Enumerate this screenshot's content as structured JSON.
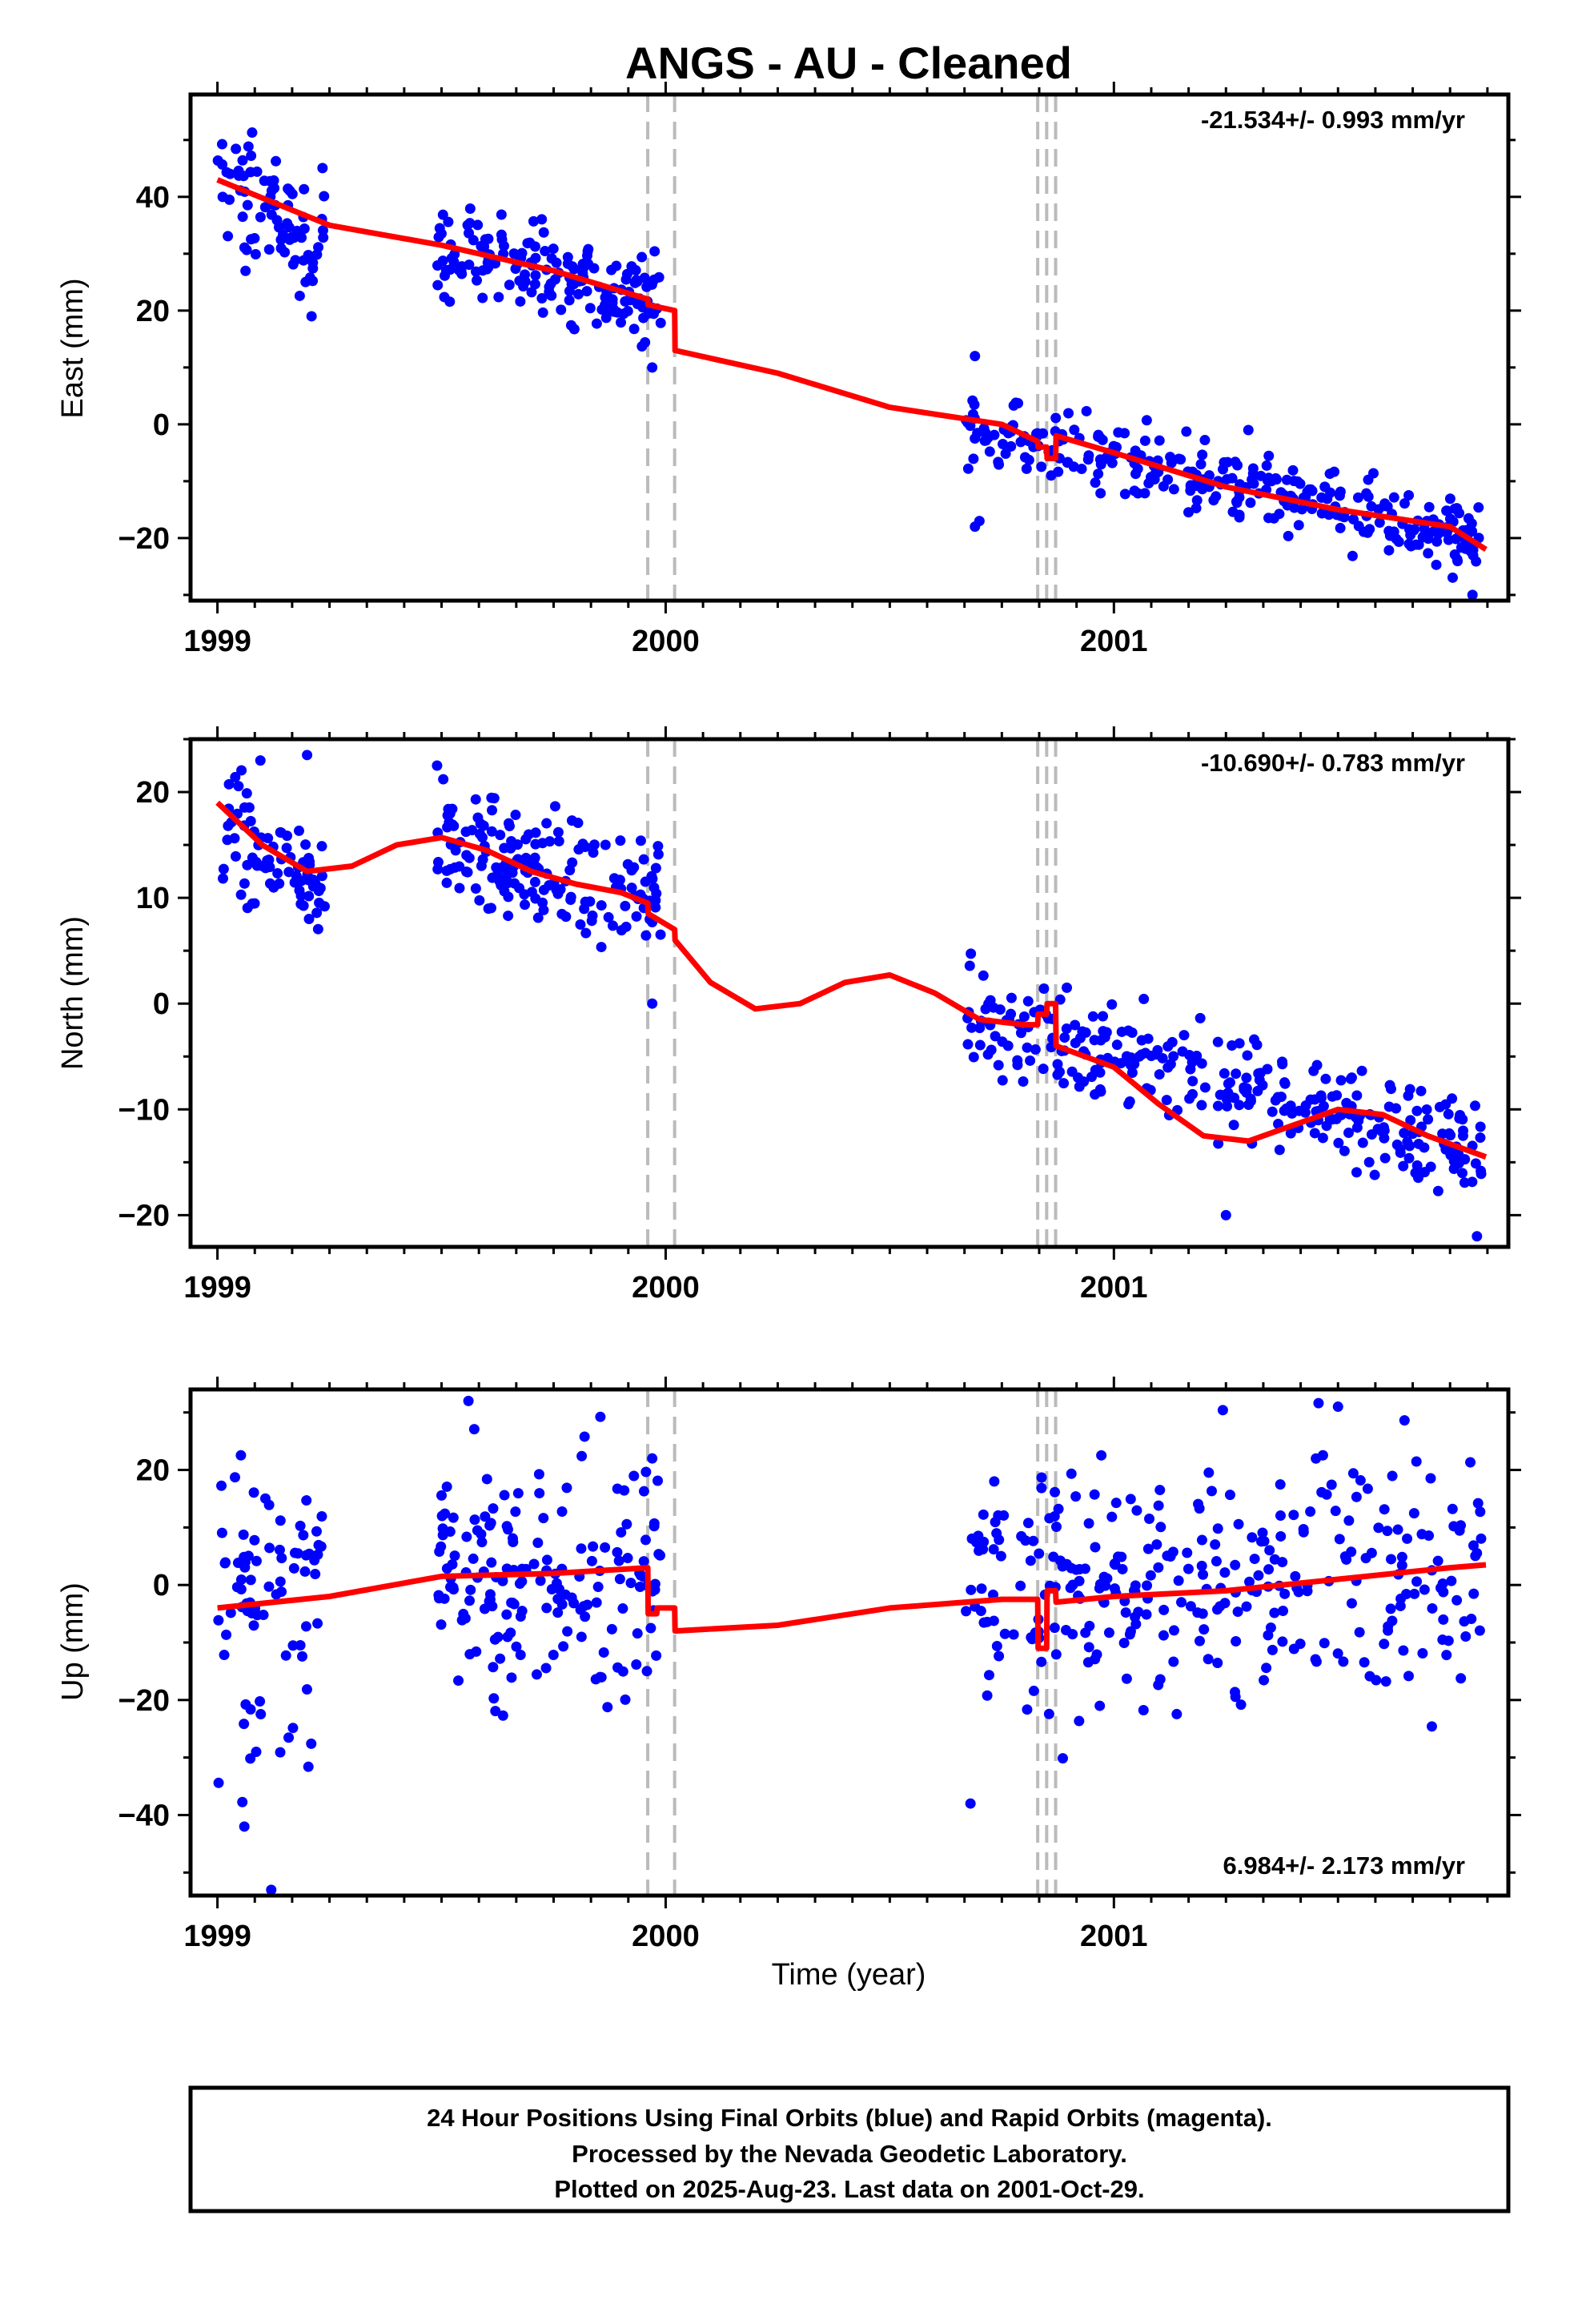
{
  "title": "ANGS  - AU - Cleaned",
  "xlabel": "Time (year)",
  "footer": [
    "24 Hour Positions Using Final Orbits (blue) and Rapid Orbits (magenta).",
    "Processed by the Nevada Geodetic Laboratory.",
    "Plotted on 2025-Aug-23. Last data on 2001-Oct-29."
  ],
  "colors": {
    "points": "#0000ff",
    "model": "#ff0000",
    "breaks": "#bbbbbb",
    "axes": "#000000"
  },
  "chart_data": [
    {
      "type": "scatter",
      "ylabel": "East (mm)",
      "rate": "-21.534+/- 0.993 mm/yr",
      "xlim": [
        1998.94,
        2001.88
      ],
      "ylim": [
        -31,
        58
      ],
      "yticks": [
        -20,
        0,
        20,
        40
      ],
      "xticks": [
        "1999",
        "2000",
        "2001"
      ],
      "breaks": [
        1999.96,
        2000.02,
        2000.83,
        2000.85,
        2000.87
      ],
      "model": {
        "x": [
          1999.0,
          1999.25,
          1999.5,
          1999.75,
          1999.96,
          1999.961,
          2000.02,
          2000.021,
          2000.25,
          2000.5,
          2000.75,
          2000.83,
          2000.831,
          2000.85,
          2000.851,
          2000.87,
          2000.871,
          2001.0,
          2001.25,
          2001.5,
          2001.75,
          2001.83
        ],
        "y": [
          43,
          35,
          31.5,
          27,
          22,
          21,
          20,
          13,
          9,
          3,
          0,
          -3,
          -4,
          -4,
          -6,
          -6,
          -2,
          -5,
          -11,
          -15,
          -18,
          -22
        ]
      },
      "clusters": [
        {
          "start": 1999.0,
          "end": 1999.24,
          "n": 80,
          "base": 42,
          "slope": -40,
          "noise": 5.5
        },
        {
          "start": 1999.49,
          "end": 1999.99,
          "n": 170,
          "base": 31,
          "slope": -18,
          "noise": 4
        },
        {
          "start": 2000.67,
          "end": 2001.82,
          "n": 310,
          "base": -1,
          "slope": -16.5,
          "noise": 3.2
        }
      ],
      "outliers": [
        {
          "x": 1999.21,
          "y": 19
        },
        {
          "x": 1999.97,
          "y": 10
        },
        {
          "x": 2000.69,
          "y": 12
        },
        {
          "x": 2000.69,
          "y": -18
        },
        {
          "x": 2000.7,
          "y": -17
        },
        {
          "x": 2001.8,
          "y": -30
        },
        {
          "x": 2001.3,
          "y": -1
        }
      ]
    },
    {
      "type": "scatter",
      "ylabel": "North (mm)",
      "rate": "-10.690+/- 0.783 mm/yr",
      "xlim": [
        1998.94,
        2001.88
      ],
      "ylim": [
        -23,
        25
      ],
      "yticks": [
        -20,
        -10,
        0,
        10,
        20
      ],
      "xticks": [
        "1999",
        "2000",
        "2001"
      ],
      "breaks": [
        1999.96,
        2000.02,
        2000.83,
        2000.85,
        2000.87
      ],
      "model": {
        "x": [
          1999.0,
          1999.1,
          1999.2,
          1999.3,
          1999.4,
          1999.5,
          1999.6,
          1999.7,
          1999.8,
          1999.9,
          1999.96,
          1999.961,
          2000.02,
          2000.021,
          2000.1,
          2000.2,
          2000.3,
          2000.4,
          2000.5,
          2000.6,
          2000.7,
          2000.8,
          2000.83,
          2000.831,
          2000.85,
          2000.851,
          2000.87,
          2000.871,
          2001.0,
          2001.1,
          2001.2,
          2001.3,
          2001.4,
          2001.5,
          2001.6,
          2001.7,
          2001.83
        ],
        "y": [
          19,
          15,
          12.5,
          13,
          15,
          15.7,
          14.5,
          12.5,
          11.3,
          10.5,
          9.5,
          8.5,
          7,
          6,
          2,
          -0.5,
          0,
          2,
          2.7,
          1,
          -1.5,
          -2,
          -2,
          -1,
          -1,
          0,
          0,
          -4,
          -6,
          -9.5,
          -12.5,
          -13,
          -11.5,
          -10,
          -10.5,
          -12.5,
          -14.5
        ]
      },
      "clusters": [
        {
          "start": 1999.0,
          "end": 1999.24,
          "n": 80,
          "base": 17,
          "slope": -20,
          "noise": 3.2
        },
        {
          "start": 1999.49,
          "end": 1999.99,
          "n": 170,
          "base": 15,
          "slope": -10,
          "noise": 2.6
        },
        {
          "start": 2000.67,
          "end": 2001.82,
          "n": 310,
          "base": -1,
          "slope": -11,
          "noise": 2.6
        }
      ],
      "outliers": [
        {
          "x": 1999.97,
          "y": 0
        },
        {
          "x": 1999.2,
          "y": 23.5
        },
        {
          "x": 1999.49,
          "y": 22.5
        },
        {
          "x": 2001.81,
          "y": -22
        },
        {
          "x": 2001.25,
          "y": -20
        }
      ]
    },
    {
      "type": "scatter",
      "ylabel": "Up (mm)",
      "rate": "6.984+/- 2.173 mm/yr",
      "xlim": [
        1998.94,
        2001.88
      ],
      "ylim": [
        -54,
        34
      ],
      "yticks": [
        -40,
        -20,
        0,
        20
      ],
      "xticks": [
        "1999",
        "2000",
        "2001"
      ],
      "breaks": [
        1999.96,
        2000.02,
        2000.83,
        2000.85,
        2000.87
      ],
      "model": {
        "x": [
          1999.0,
          1999.25,
          1999.5,
          1999.75,
          1999.96,
          1999.961,
          1999.98,
          1999.981,
          2000.02,
          2000.021,
          2000.25,
          2000.5,
          2000.75,
          2000.83,
          2000.831,
          2000.85,
          2000.851,
          2000.87,
          2000.871,
          2001.0,
          2001.25,
          2001.5,
          2001.75,
          2001.83
        ],
        "y": [
          -4,
          -2,
          1.5,
          2,
          3,
          -5,
          -5,
          -4,
          -4,
          -8,
          -7,
          -4,
          -2.5,
          -2.5,
          -11,
          -11,
          -1,
          -1,
          -3,
          -2,
          -1,
          1,
          3,
          3.5
        ]
      },
      "clusters": [
        {
          "start": 1999.0,
          "end": 1999.24,
          "n": 80,
          "base": -4,
          "slope": 0,
          "noise": 13
        },
        {
          "start": 1999.49,
          "end": 1999.99,
          "n": 170,
          "base": 2,
          "slope": 0,
          "noise": 10
        },
        {
          "start": 2000.67,
          "end": 2001.82,
          "n": 310,
          "base": -3,
          "slope": 5,
          "noise": 11
        }
      ],
      "outliers": [
        {
          "x": 1999.12,
          "y": -53
        },
        {
          "x": 1999.06,
          "y": -42
        },
        {
          "x": 2000.68,
          "y": -38
        },
        {
          "x": 1999.56,
          "y": 32
        },
        {
          "x": 2001.5,
          "y": 31
        },
        {
          "x": 1999.97,
          "y": 22
        }
      ]
    }
  ]
}
